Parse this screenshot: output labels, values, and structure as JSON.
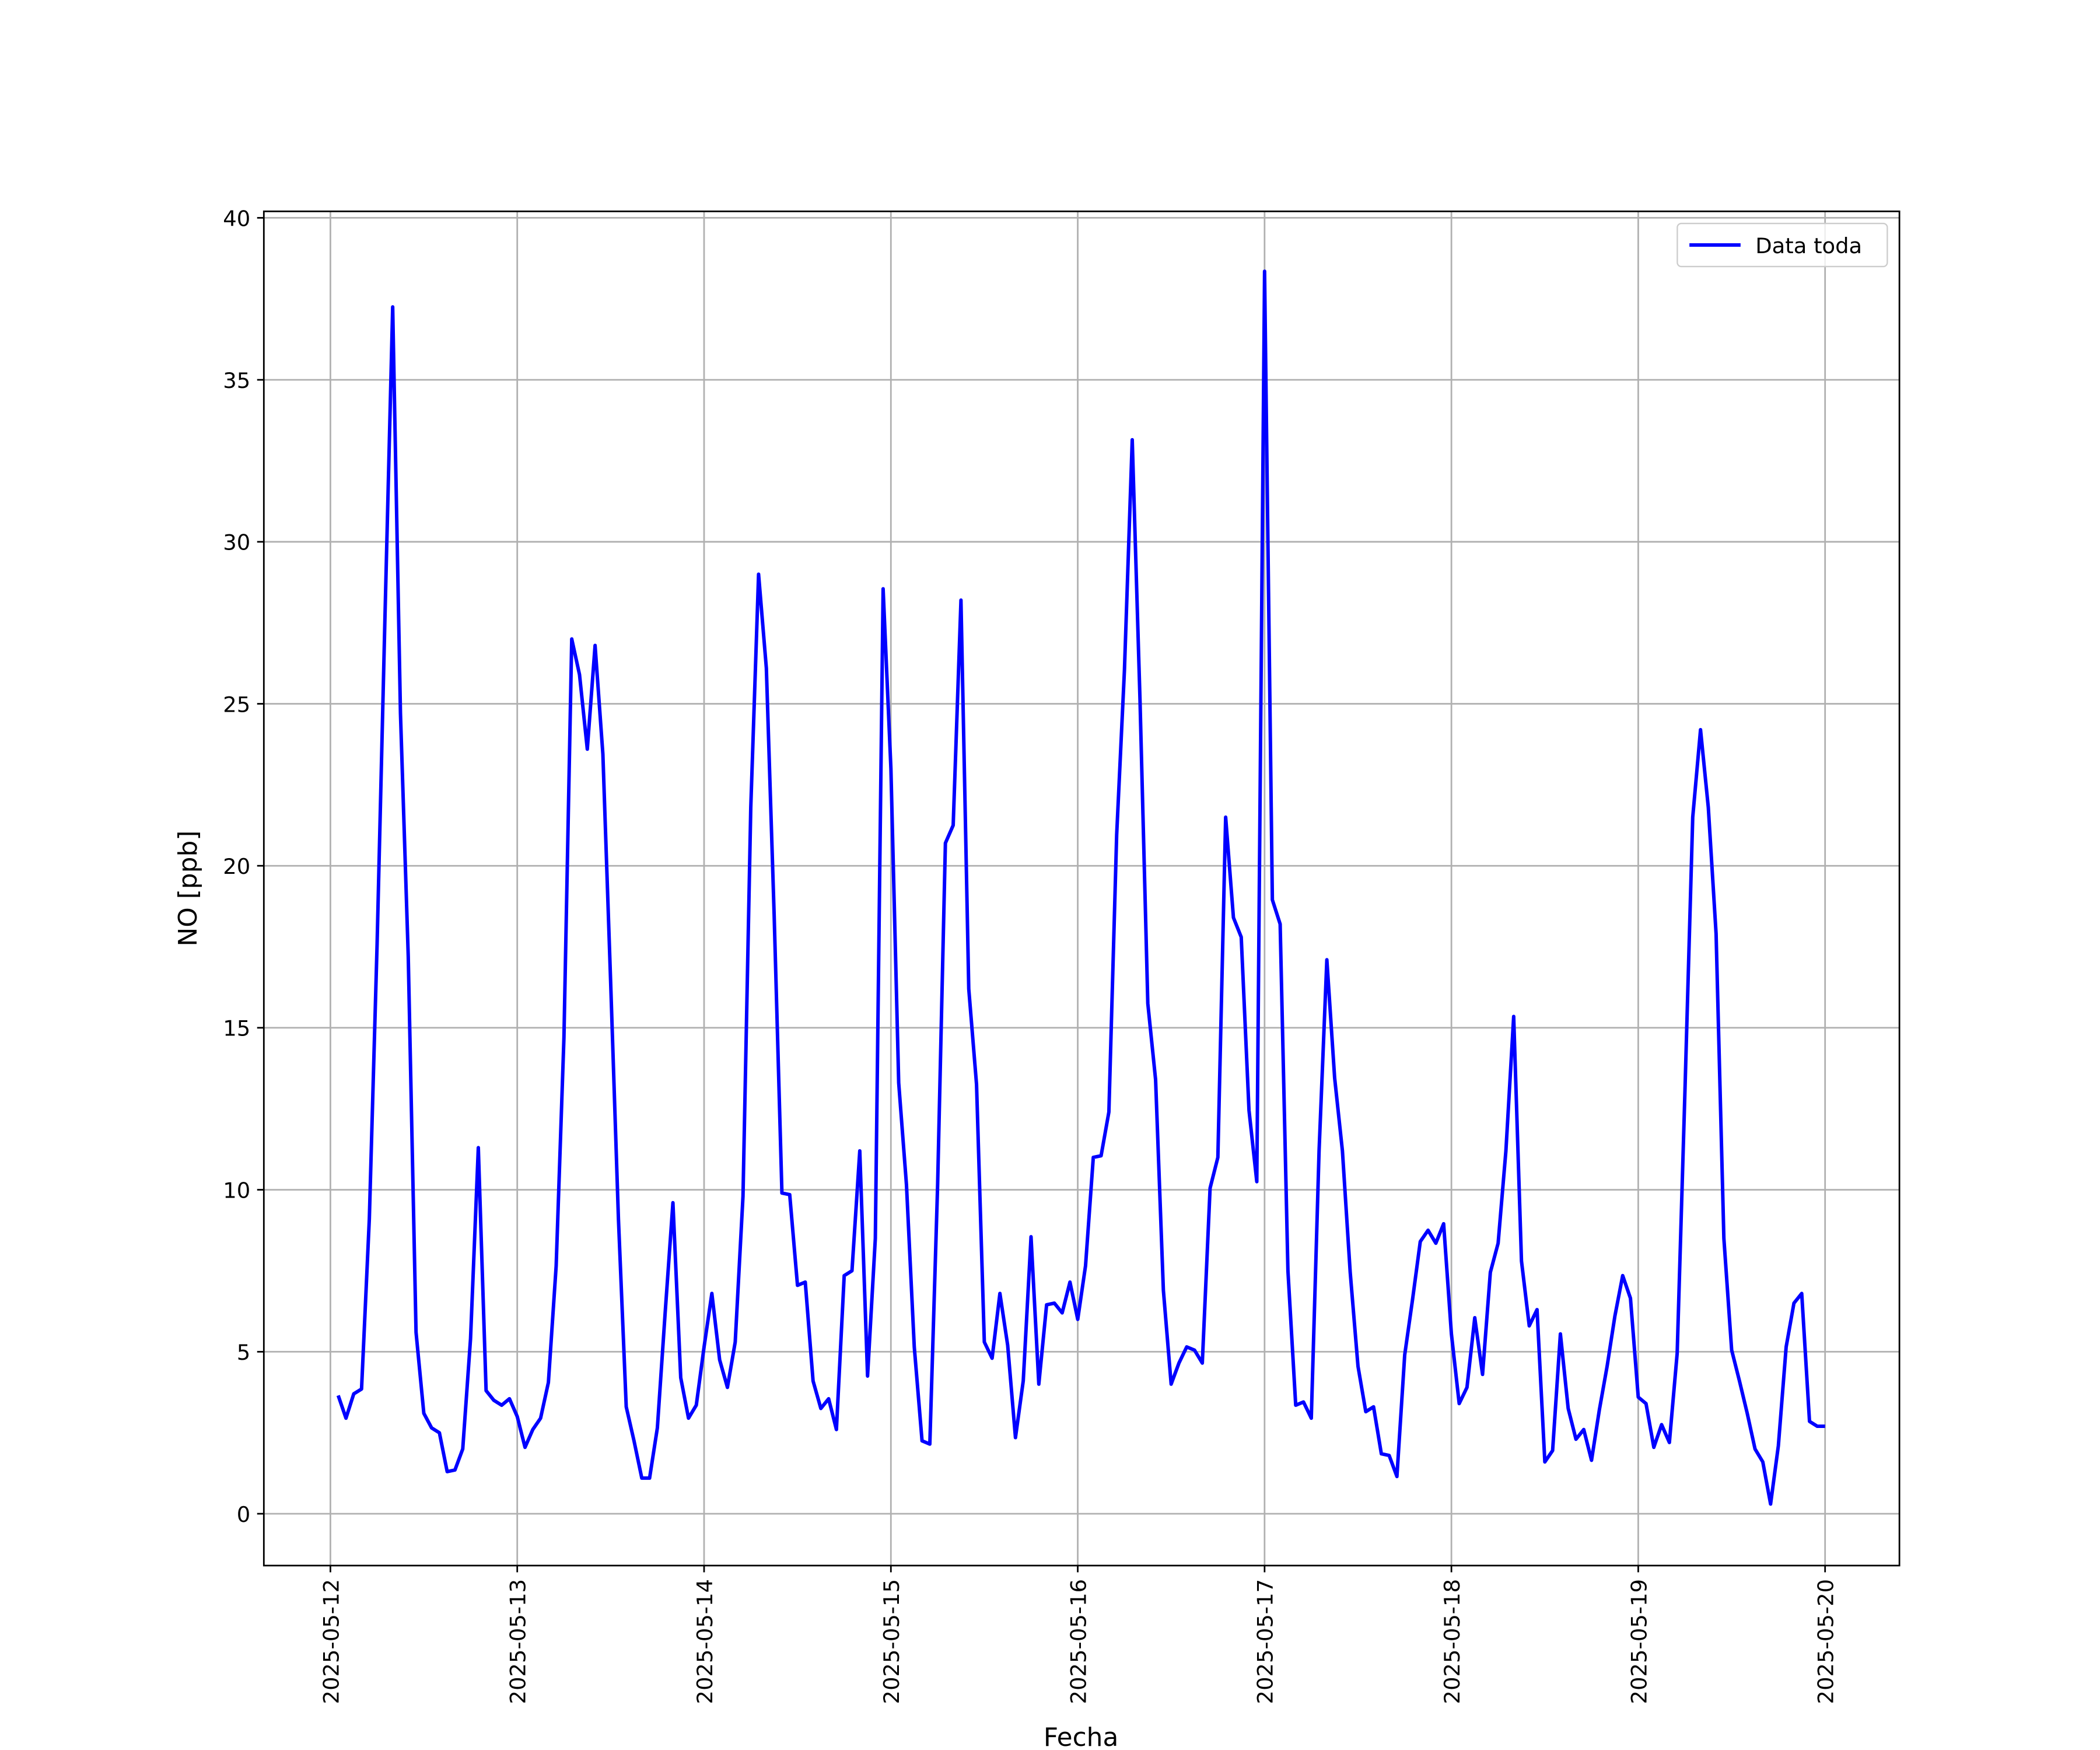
{
  "chart_data": {
    "type": "line",
    "x_label": "Fecha",
    "y_label": "NO [ppb]",
    "xlim": [
      "2025-05-11 15:27",
      "2025-05-20 09:33"
    ],
    "xticks": [
      "2025-05-12",
      "2025-05-13",
      "2025-05-14",
      "2025-05-15",
      "2025-05-16",
      "2025-05-17",
      "2025-05-18",
      "2025-05-19",
      "2025-05-20"
    ],
    "ylim": [
      -1.6,
      40.2
    ],
    "yticks": [
      0,
      5,
      10,
      15,
      20,
      25,
      30,
      35,
      40
    ],
    "grid": true,
    "legend": "upper right",
    "x": [
      "2025-05-12 01:00",
      "2025-05-12 02:00",
      "2025-05-12 03:00",
      "2025-05-12 04:00",
      "2025-05-12 05:00",
      "2025-05-12 06:00",
      "2025-05-12 07:00",
      "2025-05-12 08:00",
      "2025-05-12 09:00",
      "2025-05-12 10:00",
      "2025-05-12 11:00",
      "2025-05-12 12:00",
      "2025-05-12 13:00",
      "2025-05-12 14:00",
      "2025-05-12 15:00",
      "2025-05-12 16:00",
      "2025-05-12 17:00",
      "2025-05-12 18:00",
      "2025-05-12 19:00",
      "2025-05-12 20:00",
      "2025-05-12 21:00",
      "2025-05-12 22:00",
      "2025-05-12 23:00",
      "2025-05-13 00:00",
      "2025-05-13 01:00",
      "2025-05-13 02:00",
      "2025-05-13 03:00",
      "2025-05-13 04:00",
      "2025-05-13 05:00",
      "2025-05-13 06:00",
      "2025-05-13 07:00",
      "2025-05-13 08:00",
      "2025-05-13 09:00",
      "2025-05-13 10:00",
      "2025-05-13 11:00",
      "2025-05-13 12:00",
      "2025-05-13 13:00",
      "2025-05-13 14:00",
      "2025-05-13 15:00",
      "2025-05-13 16:00",
      "2025-05-13 17:00",
      "2025-05-13 18:00",
      "2025-05-13 19:00",
      "2025-05-13 20:00",
      "2025-05-13 21:00",
      "2025-05-13 22:00",
      "2025-05-13 23:00",
      "2025-05-14 00:00",
      "2025-05-14 01:00",
      "2025-05-14 02:00",
      "2025-05-14 03:00",
      "2025-05-14 04:00",
      "2025-05-14 05:00",
      "2025-05-14 06:00",
      "2025-05-14 07:00",
      "2025-05-14 08:00",
      "2025-05-14 09:00",
      "2025-05-14 10:00",
      "2025-05-14 11:00",
      "2025-05-14 12:00",
      "2025-05-14 13:00",
      "2025-05-14 14:00",
      "2025-05-14 15:00",
      "2025-05-14 16:00",
      "2025-05-14 17:00",
      "2025-05-14 18:00",
      "2025-05-14 19:00",
      "2025-05-14 20:00",
      "2025-05-14 21:00",
      "2025-05-14 22:00",
      "2025-05-14 23:00",
      "2025-05-15 00:00",
      "2025-05-15 01:00",
      "2025-05-15 02:00",
      "2025-05-15 03:00",
      "2025-05-15 04:00",
      "2025-05-15 05:00",
      "2025-05-15 06:00",
      "2025-05-15 07:00",
      "2025-05-15 08:00",
      "2025-05-15 09:00",
      "2025-05-15 10:00",
      "2025-05-15 11:00",
      "2025-05-15 12:00",
      "2025-05-15 13:00",
      "2025-05-15 14:00",
      "2025-05-15 15:00",
      "2025-05-15 16:00",
      "2025-05-15 17:00",
      "2025-05-15 18:00",
      "2025-05-15 19:00",
      "2025-05-15 20:00",
      "2025-05-15 21:00",
      "2025-05-15 22:00",
      "2025-05-15 23:00",
      "2025-05-16 00:00",
      "2025-05-16 01:00",
      "2025-05-16 02:00",
      "2025-05-16 03:00",
      "2025-05-16 04:00",
      "2025-05-16 05:00",
      "2025-05-16 06:00",
      "2025-05-16 07:00",
      "2025-05-16 08:00",
      "2025-05-16 09:00",
      "2025-05-16 10:00",
      "2025-05-16 11:00",
      "2025-05-16 12:00",
      "2025-05-16 13:00",
      "2025-05-16 14:00",
      "2025-05-16 15:00",
      "2025-05-16 16:00",
      "2025-05-16 17:00",
      "2025-05-16 18:00",
      "2025-05-16 19:00",
      "2025-05-16 20:00",
      "2025-05-16 21:00",
      "2025-05-16 22:00",
      "2025-05-16 23:00",
      "2025-05-17 00:00",
      "2025-05-17 01:00",
      "2025-05-17 02:00",
      "2025-05-17 03:00",
      "2025-05-17 04:00",
      "2025-05-17 05:00",
      "2025-05-17 06:00",
      "2025-05-17 07:00",
      "2025-05-17 08:00",
      "2025-05-17 09:00",
      "2025-05-17 10:00",
      "2025-05-17 11:00",
      "2025-05-17 12:00",
      "2025-05-17 13:00",
      "2025-05-17 14:00",
      "2025-05-17 15:00",
      "2025-05-17 16:00",
      "2025-05-17 17:00",
      "2025-05-17 18:00",
      "2025-05-17 19:00",
      "2025-05-17 20:00",
      "2025-05-17 21:00",
      "2025-05-17 22:00",
      "2025-05-17 23:00",
      "2025-05-18 00:00",
      "2025-05-18 01:00",
      "2025-05-18 02:00",
      "2025-05-18 03:00",
      "2025-05-18 04:00",
      "2025-05-18 05:00",
      "2025-05-18 06:00",
      "2025-05-18 07:00",
      "2025-05-18 08:00",
      "2025-05-18 09:00",
      "2025-05-18 10:00",
      "2025-05-18 11:00",
      "2025-05-18 12:00",
      "2025-05-18 13:00",
      "2025-05-18 14:00",
      "2025-05-18 15:00",
      "2025-05-18 16:00",
      "2025-05-18 17:00",
      "2025-05-18 18:00",
      "2025-05-18 19:00",
      "2025-05-18 20:00",
      "2025-05-18 21:00",
      "2025-05-18 22:00",
      "2025-05-18 23:00",
      "2025-05-19 00:00",
      "2025-05-19 01:00",
      "2025-05-19 02:00",
      "2025-05-19 03:00",
      "2025-05-19 04:00",
      "2025-05-19 05:00",
      "2025-05-19 06:00",
      "2025-05-19 07:00",
      "2025-05-19 08:00",
      "2025-05-19 09:00",
      "2025-05-19 10:00",
      "2025-05-19 11:00",
      "2025-05-19 12:00",
      "2025-05-19 13:00",
      "2025-05-19 14:00",
      "2025-05-19 15:00",
      "2025-05-19 16:00",
      "2025-05-19 17:00",
      "2025-05-19 18:00",
      "2025-05-19 19:00",
      "2025-05-19 20:00",
      "2025-05-19 21:00",
      "2025-05-19 22:00",
      "2025-05-19 23:00",
      "2025-05-20 00:00"
    ],
    "series": [
      {
        "name": "Data toda",
        "color": "#0000ff",
        "values": [
          3.65,
          2.95,
          3.7,
          3.85,
          9.1,
          17.6,
          27.6,
          37.25,
          24.7,
          17.2,
          5.6,
          3.1,
          2.65,
          2.5,
          1.3,
          1.35,
          2.0,
          5.4,
          11.3,
          3.8,
          3.5,
          3.35,
          3.55,
          3.0,
          2.05,
          2.6,
          2.95,
          4.05,
          7.65,
          14.7,
          27.0,
          25.9,
          23.6,
          26.8,
          23.45,
          16.4,
          9.1,
          3.3,
          2.25,
          1.1,
          1.1,
          2.65,
          6.2,
          9.6,
          4.2,
          2.95,
          3.35,
          5.15,
          6.8,
          4.75,
          3.9,
          5.3,
          9.8,
          21.8,
          29.0,
          26.1,
          18.5,
          9.9,
          9.85,
          7.05,
          7.15,
          4.1,
          3.25,
          3.55,
          2.6,
          7.35,
          7.5,
          11.2,
          4.25,
          8.5,
          28.55,
          23.0,
          13.3,
          10.15,
          5.15,
          2.25,
          2.15,
          10.15,
          20.7,
          21.25,
          28.2,
          16.2,
          13.25,
          5.3,
          4.8,
          6.8,
          5.2,
          2.35,
          4.1,
          8.55,
          4.0,
          6.45,
          6.5,
          6.2,
          7.15,
          6.0,
          7.65,
          11.0,
          11.05,
          12.4,
          20.95,
          26.05,
          33.15,
          25.1,
          15.75,
          13.4,
          6.9,
          4.0,
          4.65,
          5.15,
          5.05,
          4.65,
          10.05,
          11.0,
          21.5,
          18.4,
          17.8,
          12.45,
          10.25,
          38.35,
          18.95,
          18.2,
          7.5,
          3.35,
          3.45,
          2.95,
          11.2,
          17.1,
          13.45,
          11.2,
          7.45,
          4.55,
          3.15,
          3.3,
          1.85,
          1.8,
          1.15,
          4.9,
          6.6,
          8.4,
          8.75,
          8.35,
          8.95,
          5.55,
          3.4,
          3.9,
          6.05,
          4.3,
          7.45,
          8.35,
          11.2,
          15.35,
          7.8,
          5.8,
          6.3,
          1.6,
          1.95,
          5.55,
          3.25,
          2.3,
          2.6,
          1.65,
          3.2,
          4.55,
          6.1,
          7.35,
          6.65,
          3.6,
          3.4,
          2.05,
          2.75,
          2.2,
          4.95,
          13.05,
          21.5,
          24.2,
          21.8,
          17.9,
          8.5,
          5.05,
          4.1,
          3.1,
          2.0,
          1.6,
          0.3,
          2.1,
          5.15,
          6.5,
          6.8,
          2.85,
          2.7,
          2.7
        ]
      }
    ]
  }
}
